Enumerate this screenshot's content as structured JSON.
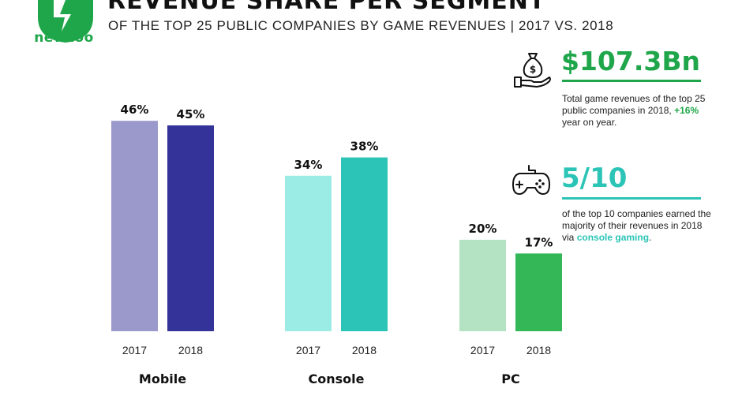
{
  "brand": {
    "logo_text": "newzoo"
  },
  "header": {
    "title": "REVENUE SHARE PER SEGMENT",
    "subtitle": "OF THE TOP 25 PUBLIC COMPANIES BY GAME REVENUES | 2017 VS. 2018"
  },
  "stats": {
    "revenue": {
      "value": "$107.3Bn",
      "desc_pre": "Total game revenues of the top 25 public companies in 2018, ",
      "desc_highlight": "+16%",
      "desc_post": " year on year.",
      "icon": "money-bag-hand-icon",
      "color": "#1fa64a"
    },
    "console": {
      "value": "5/10",
      "desc_pre": "of the top 10 companies earned the majority of their revenues in 2018 via ",
      "desc_highlight": "console gaming",
      "desc_post": ".",
      "icon": "gamepad-icon",
      "color": "#2bc4b6"
    }
  },
  "chart_data": {
    "type": "bar",
    "title": "REVENUE SHARE PER SEGMENT",
    "categories": [
      "Mobile",
      "Console",
      "PC"
    ],
    "x": [
      "2017",
      "2018"
    ],
    "series": [
      {
        "values": [
          46,
          34,
          20
        ]
      },
      {
        "values": [
          45,
          38,
          17
        ]
      }
    ],
    "value_suffix": "%",
    "colors": {
      "Mobile": [
        "#9b98cc",
        "#333399"
      ],
      "Console": [
        "#9aece4",
        "#2bc4b6"
      ],
      "PC": [
        "#b3e3c2",
        "#34b857"
      ]
    },
    "ylim": [
      0,
      50
    ],
    "grid": false,
    "legend": "none"
  }
}
